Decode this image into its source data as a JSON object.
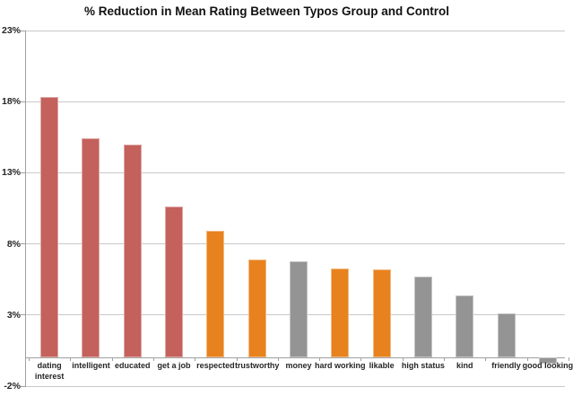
{
  "chart_data": {
    "type": "bar",
    "title": "% Reduction in Mean Rating Between Typos Group and Control",
    "categories": [
      "dating\ninterest",
      "intelligent",
      "educated",
      "get a job",
      "respected",
      "trustworthy",
      "money",
      "hard working",
      "likable",
      "high status",
      "kind",
      "friendly",
      "good looking"
    ],
    "values": [
      18.3,
      15.4,
      15.0,
      10.6,
      8.9,
      6.9,
      6.8,
      6.3,
      6.2,
      5.7,
      4.4,
      3.1,
      -0.4
    ],
    "bar_colors": [
      "#C4615C",
      "#C4615C",
      "#C4615C",
      "#C4615C",
      "#E8821E",
      "#E8821E",
      "#949494",
      "#E8821E",
      "#E8821E",
      "#949494",
      "#949494",
      "#949494",
      "#949494"
    ],
    "xlabel": "",
    "ylabel": "",
    "y_tick_labels": [
      "23%",
      "18%",
      "13%",
      "8%",
      "3%",
      "-2%"
    ],
    "y_tick_values": [
      23,
      18,
      13,
      8,
      3,
      -2
    ],
    "ylim": [
      -2,
      23
    ],
    "grid": "horizontal gridlines on",
    "legend": "none"
  },
  "colors": {
    "bar_red": "#C4615C",
    "bar_orange": "#E8821E",
    "bar_gray": "#949494",
    "gridline": "#C9C9C9",
    "axis": "#A0A0A0",
    "label_text": "#262626",
    "title_text": "#111111",
    "background": "#FFFFFF"
  }
}
